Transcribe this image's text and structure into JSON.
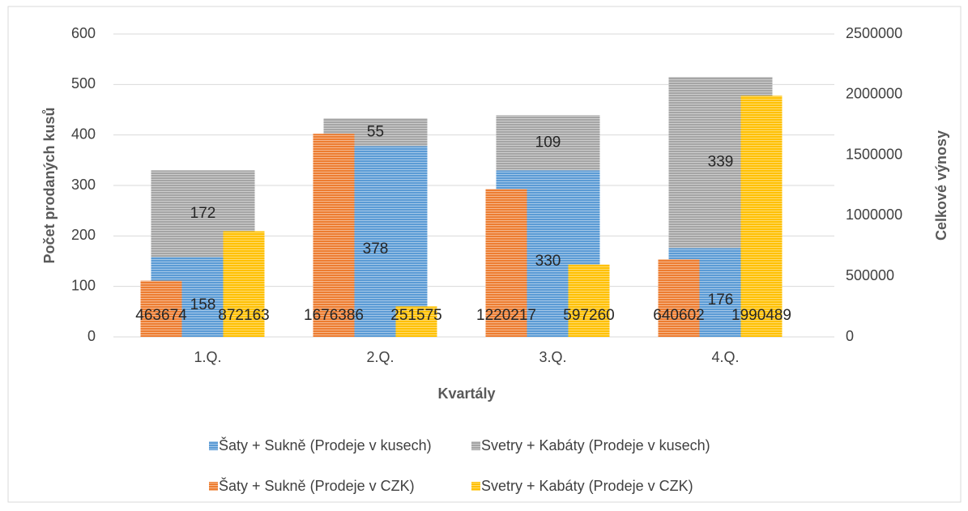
{
  "chart_data": {
    "type": "bar",
    "stacked": true,
    "categories": [
      "1.Q.",
      "2.Q.",
      "3.Q.",
      "4.Q."
    ],
    "x_label": "Kvartály",
    "y_label": "Počet prodaných kusů",
    "y2_label": "Celkové výnosy",
    "ylim": [
      0,
      600
    ],
    "yticks": [
      0,
      100,
      200,
      300,
      400,
      500,
      600
    ],
    "y2lim": [
      0,
      2500000
    ],
    "y2ticks": [
      0,
      500000,
      1000000,
      1500000,
      2000000,
      2500000
    ],
    "grid": true,
    "legend": "bottom",
    "series": [
      {
        "name": "Šaty + Sukně (Prodeje v kusech)",
        "color": "#5b9bd5",
        "values": [
          158,
          378,
          330,
          176
        ]
      },
      {
        "name": "Svetry + Kabáty (Prodeje v kusech)",
        "color": "#a5a5a5",
        "values": [
          172,
          55,
          109,
          339
        ]
      },
      {
        "name": "Šaty + Sukně (Prodeje v CZK)",
        "color": "#ed7d31",
        "axis": "y2",
        "values": [
          463674,
          1676386,
          1220217,
          640602
        ]
      },
      {
        "name": "Svetry + Kabáty (Prodeje v CZK)",
        "color": "#ffc000",
        "axis": "y2",
        "values": [
          872163,
          251575,
          597260,
          1990489
        ]
      }
    ]
  }
}
